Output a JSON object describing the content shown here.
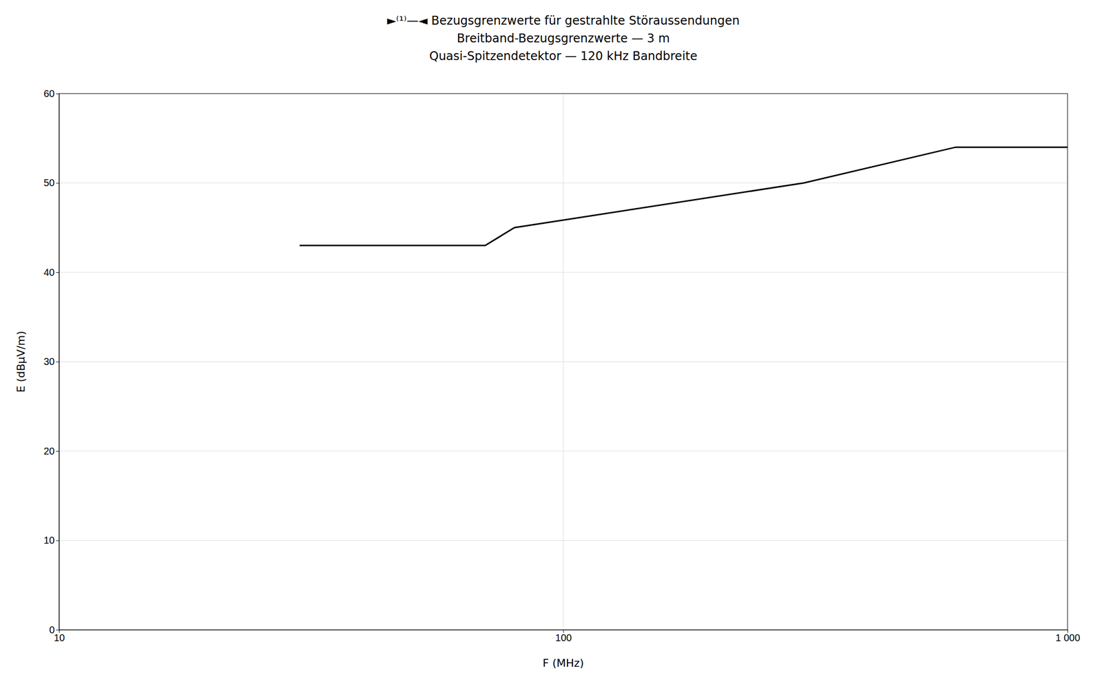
{
  "chart_data": {
    "type": "line",
    "title": "►⁽¹⁾—◄ Bezugsgrenzwerte für gestrahlte Störaussendungen\nBreitband-Bezugsgrenzwerte — 3 m\nQuasi-Spitzendetektor — 120 kHz Bandbreite",
    "x_label": "F (MHz)",
    "y_label": "E (dBµV/m)",
    "x": [
      30,
      70,
      80,
      300,
      600,
      1000
    ],
    "values": [
      43,
      43,
      45,
      50,
      54,
      54
    ],
    "color": "#000000",
    "xlim": [
      10,
      1000
    ],
    "ylim": [
      0,
      60
    ],
    "xticks": [
      10,
      100,
      {
        "value": 1000,
        "label": "1 000"
      }
    ],
    "yticks": [
      0,
      10,
      20,
      30,
      40,
      50,
      60
    ],
    "log": "x",
    "grid": true
  }
}
